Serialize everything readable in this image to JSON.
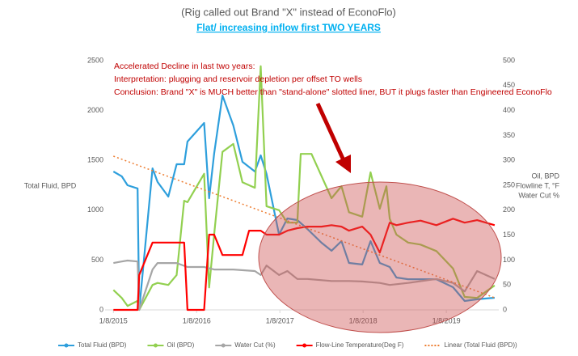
{
  "chart_data": {
    "type": "line",
    "title": "(Rig called out Brand \"X\" instead of EconoFlo)",
    "subtitle": "Flat/ increasing inflow first TWO YEARS",
    "annotations": [
      "Accelerated Decline in last two years:",
      "Interpretation:  plugging and reservoir depletion per offset TO wells",
      "Conclusion:  Brand \"X\" is MUCH better than \"stand-alone\" slotted liner, BUT it plugs faster than Engineered EconoFlo"
    ],
    "ylabel": "Total Fluid, BPD",
    "y2label": [
      "Oil, BPD",
      "Flowline T, °F",
      "Water Cut %"
    ],
    "xlim": [
      2014.92,
      2019.65
    ],
    "xticks": [
      {
        "value": 2015.02,
        "label": "1/8/2015"
      },
      {
        "value": 2016.02,
        "label": "1/8/2016"
      },
      {
        "value": 2017.02,
        "label": "1/8/2017"
      },
      {
        "value": 2018.02,
        "label": "1/8/2018"
      },
      {
        "value": 2019.02,
        "label": "1/8/2019"
      }
    ],
    "ylim": [
      0,
      2500
    ],
    "yticks": [
      0,
      500,
      1000,
      1500,
      2000,
      2500
    ],
    "y2lim": [
      0,
      500
    ],
    "y2ticks": [
      0,
      50,
      100,
      150,
      200,
      250,
      300,
      350,
      400,
      450,
      500
    ],
    "series": [
      {
        "name": "Total Fluid (BPD)",
        "color": "#2e9fdc",
        "x": [
          2015.02,
          2015.12,
          2015.19,
          2015.31,
          2015.33,
          2015.49,
          2015.55,
          2015.68,
          2015.78,
          2015.87,
          2015.91,
          2016.11,
          2016.17,
          2016.23,
          2016.33,
          2016.46,
          2016.57,
          2016.72,
          2016.79,
          2016.86,
          2017.01,
          2017.11,
          2017.23,
          2017.35,
          2017.52,
          2017.64,
          2017.76,
          2017.85,
          2018.01,
          2018.11,
          2018.22,
          2018.34,
          2018.42,
          2018.56,
          2018.71,
          2018.9,
          2019.1,
          2019.24,
          2019.39,
          2019.6
        ],
        "values": [
          1388,
          1340,
          1250,
          1218,
          0,
          1420,
          1283,
          1136,
          1461,
          1461,
          1688,
          1875,
          1120,
          1567,
          2151,
          1851,
          1485,
          1388,
          1550,
          1364,
          755,
          917,
          901,
          812,
          674,
          593,
          690,
          471,
          455,
          690,
          471,
          430,
          325,
          308,
          308,
          308,
          227,
          89,
          106,
          122
        ]
      },
      {
        "name": "Oil (BPD)",
        "color": "#92d050",
        "axis": "y2",
        "x": [
          2015.02,
          2015.12,
          2015.19,
          2015.31,
          2015.33,
          2015.49,
          2015.55,
          2015.68,
          2015.78,
          2015.87,
          2015.91,
          2016.11,
          2016.17,
          2016.23,
          2016.33,
          2016.46,
          2016.57,
          2016.72,
          2016.79,
          2016.86,
          2017.01,
          2017.11,
          2017.23,
          2017.27,
          2017.4,
          2017.64,
          2017.76,
          2017.85,
          2018.01,
          2018.11,
          2018.22,
          2018.3,
          2018.34,
          2018.42,
          2018.56,
          2018.71,
          2018.9,
          2019.1,
          2019.24,
          2019.39,
          2019.6
        ],
        "values": [
          40,
          24,
          8,
          18,
          0,
          50,
          54,
          50,
          70,
          219,
          216,
          273,
          45,
          151,
          317,
          333,
          256,
          245,
          489,
          208,
          200,
          175,
          175,
          313,
          313,
          224,
          248,
          196,
          187,
          276,
          203,
          248,
          183,
          151,
          135,
          131,
          118,
          83,
          26,
          24,
          49
        ]
      },
      {
        "name": "Water Cut (%)",
        "color": "#a6a6a6",
        "axis": "y2",
        "x": [
          2015.02,
          2015.12,
          2015.19,
          2015.31,
          2015.33,
          2015.49,
          2015.55,
          2015.68,
          2015.78,
          2015.91,
          2016.11,
          2016.23,
          2016.46,
          2016.72,
          2016.79,
          2016.86,
          2017.01,
          2017.11,
          2017.23,
          2017.35,
          2017.64,
          2017.85,
          2018.01,
          2018.22,
          2018.34,
          2018.56,
          2018.9,
          2019.1,
          2019.24,
          2019.39,
          2019.6
        ],
        "values": [
          94,
          97,
          99,
          97,
          0,
          81,
          94,
          94,
          94,
          86,
          86,
          81,
          81,
          78,
          70,
          89,
          70,
          78,
          62,
          62,
          58,
          58,
          57,
          54,
          50,
          54,
          62,
          54,
          37,
          78,
          62
        ]
      },
      {
        "name": "Flow-Line Temperature(Deg F)",
        "color": "#ff0000",
        "axis": "y2",
        "x": [
          2015.02,
          2015.19,
          2015.31,
          2015.33,
          2015.49,
          2015.55,
          2015.68,
          2015.87,
          2015.91,
          2016.11,
          2016.17,
          2016.23,
          2016.33,
          2016.46,
          2016.57,
          2016.65,
          2016.79,
          2016.86,
          2017.01,
          2017.11,
          2017.23,
          2017.35,
          2017.52,
          2017.64,
          2017.76,
          2017.85,
          2018.01,
          2018.11,
          2018.22,
          2018.34,
          2018.42,
          2018.56,
          2018.71,
          2018.9,
          2019.1,
          2019.24,
          2019.39,
          2019.6
        ],
        "values": [
          0,
          0,
          0,
          70,
          135,
          135,
          135,
          135,
          0,
          0,
          151,
          151,
          110,
          110,
          110,
          159,
          159,
          151,
          151,
          159,
          164,
          167,
          167,
          170,
          167,
          159,
          167,
          151,
          115,
          175,
          170,
          175,
          179,
          170,
          183,
          175,
          180,
          170
        ]
      },
      {
        "name": "Linear (Total Fluid (BPD))",
        "color": "#ed7d31",
        "dashed": true,
        "x": [
          2015.02,
          2019.6
        ],
        "values": [
          1542,
          122
        ]
      }
    ]
  }
}
